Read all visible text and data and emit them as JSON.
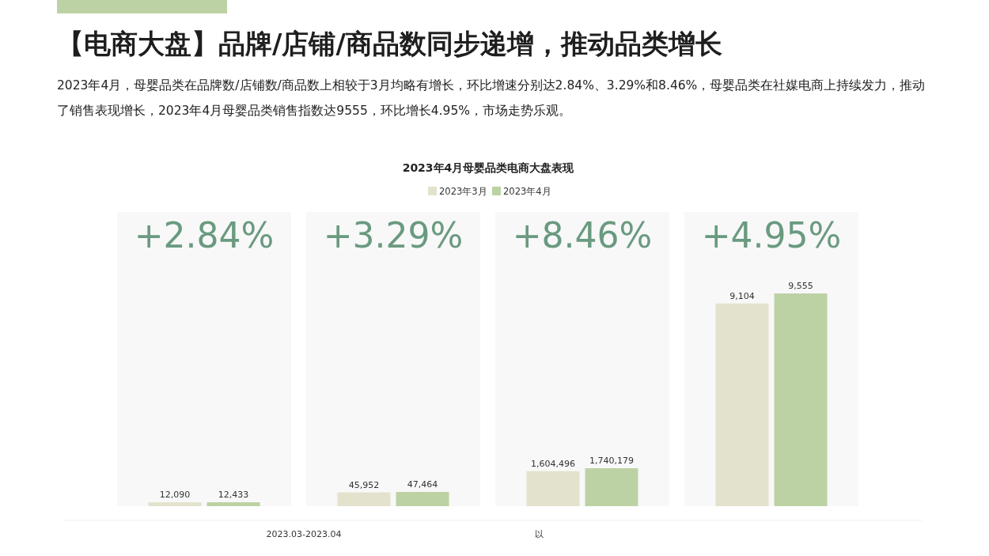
{
  "chart_data": [
    {
      "type": "bar",
      "title": "【电商大盘】品牌/店铺/商品数同步递增，推动品类增长",
      "subtitle": "2023年4月，母婴品类在品牌数/店铺数/商品数上相较于3月均略有增长，环比增速分别达2.84%、3.29%和8.46%，母婴品类在社媒电商上持续发力，推动了销售表现增长，2023年4月母婴品类销售指数达9555，环比增长4.95%，市场走势乐观。",
      "annotations": [
        "+2.84%",
        "2023年4月母婴品类电商大盘表现",
        "2023.03-2023.04",
        "以"
      ],
      "legend": "top",
      "categories": [
        null
      ],
      "series": [
        {
          "name": "2023年3月",
          "color": "#e3e2cc",
          "values": [
            12090
          ],
          "value_labels": [
            "12,090"
          ]
        },
        {
          "name": "2023年4月",
          "color": "#bdd2a4",
          "values": [
            12433
          ],
          "value_labels": [
            "12,433"
          ]
        }
      ]
    },
    {
      "type": "bar",
      "annotations": [
        "+3.29%"
      ],
      "categories": [
        null
      ],
      "series": [
        {
          "color": "#e3e2cc",
          "values": [
            45952
          ],
          "value_labels": [
            "45,952"
          ]
        },
        {
          "color": "#bdd2a4",
          "values": [
            47464
          ],
          "value_labels": [
            "47,464"
          ]
        }
      ]
    },
    {
      "type": "bar",
      "annotations": [
        "+8.46%"
      ],
      "categories": [
        null
      ],
      "series": [
        {
          "color": "#e3e2cc",
          "values": [
            1604496
          ],
          "value_labels": [
            "1,604,496"
          ]
        },
        {
          "color": "#bdd2a4",
          "values": [
            1740179
          ],
          "value_labels": [
            "1,740,179"
          ]
        }
      ]
    },
    {
      "type": "bar",
      "annotations": [
        "+4.95%"
      ],
      "categories": [
        null
      ],
      "series": [
        {
          "color": "#e3e2cc",
          "values": [
            9104
          ],
          "value_labels": [
            "9,104"
          ]
        },
        {
          "color": "#bdd2a4",
          "values": [
            9555
          ],
          "value_labels": [
            "9,555"
          ]
        }
      ]
    }
  ]
}
